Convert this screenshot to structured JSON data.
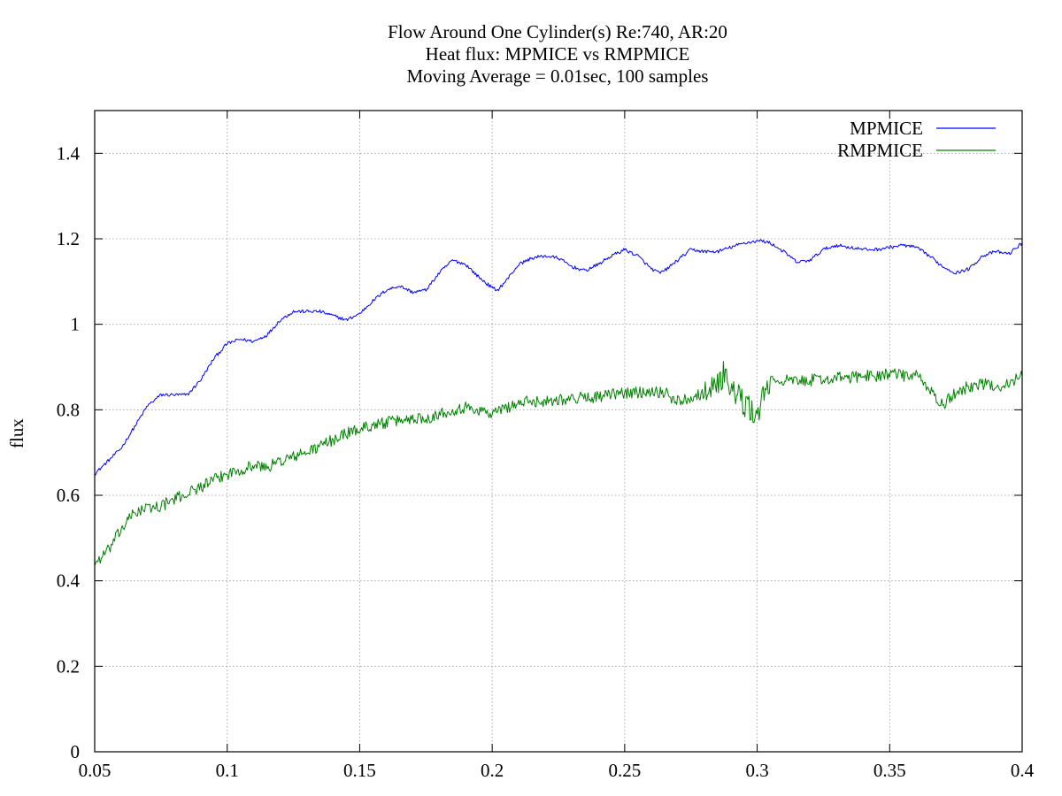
{
  "chart_data": {
    "type": "line",
    "title_lines": [
      "Flow Around One Cylinder(s) Re:740, AR:20",
      "Heat flux: MPMICE vs RMPMICE",
      "Moving Average = 0.01sec, 100 samples"
    ],
    "xlabel": "",
    "ylabel": "flux",
    "xlim": [
      0.05,
      0.4
    ],
    "ylim": [
      0,
      1.5
    ],
    "xticks": [
      0.05,
      0.1,
      0.15,
      0.2,
      0.25,
      0.3,
      0.35,
      0.4
    ],
    "xtick_labels": [
      "0.05",
      "0.1",
      "0.15",
      "0.2",
      "0.25",
      "0.3",
      "0.35",
      "0.4"
    ],
    "yticks": [
      0,
      0.2,
      0.4,
      0.6,
      0.8,
      1,
      1.2,
      1.4
    ],
    "ytick_labels": [
      "0",
      "0.2",
      "0.4",
      "0.6",
      "0.8",
      "1",
      "1.2",
      "1.4"
    ],
    "grid": true,
    "legend_position": "top-right",
    "series": [
      {
        "name": "MPMICE",
        "color": "#0000ff",
        "x": [
          0.05,
          0.055,
          0.06,
          0.065,
          0.07,
          0.075,
          0.08,
          0.085,
          0.09,
          0.095,
          0.1,
          0.105,
          0.11,
          0.115,
          0.12,
          0.125,
          0.13,
          0.135,
          0.14,
          0.145,
          0.15,
          0.155,
          0.16,
          0.165,
          0.17,
          0.175,
          0.18,
          0.185,
          0.19,
          0.195,
          0.2,
          0.202,
          0.205,
          0.21,
          0.215,
          0.22,
          0.225,
          0.23,
          0.235,
          0.24,
          0.245,
          0.25,
          0.255,
          0.26,
          0.263,
          0.265,
          0.27,
          0.275,
          0.28,
          0.285,
          0.29,
          0.295,
          0.3,
          0.302,
          0.305,
          0.31,
          0.315,
          0.32,
          0.325,
          0.33,
          0.335,
          0.34,
          0.345,
          0.35,
          0.355,
          0.36,
          0.365,
          0.37,
          0.375,
          0.38,
          0.385,
          0.39,
          0.395,
          0.4
        ],
        "y": [
          0.65,
          0.68,
          0.71,
          0.76,
          0.81,
          0.835,
          0.835,
          0.835,
          0.87,
          0.92,
          0.955,
          0.965,
          0.96,
          0.975,
          1.01,
          1.03,
          1.03,
          1.03,
          1.02,
          1.01,
          1.025,
          1.055,
          1.08,
          1.09,
          1.075,
          1.08,
          1.12,
          1.15,
          1.14,
          1.11,
          1.085,
          1.08,
          1.1,
          1.14,
          1.155,
          1.16,
          1.155,
          1.135,
          1.125,
          1.14,
          1.16,
          1.175,
          1.16,
          1.13,
          1.12,
          1.125,
          1.15,
          1.175,
          1.17,
          1.17,
          1.18,
          1.19,
          1.195,
          1.195,
          1.19,
          1.17,
          1.145,
          1.15,
          1.175,
          1.185,
          1.18,
          1.175,
          1.175,
          1.18,
          1.185,
          1.18,
          1.16,
          1.135,
          1.12,
          1.13,
          1.16,
          1.17,
          1.165,
          1.19
        ]
      },
      {
        "name": "RMPMICE",
        "color": "#008000",
        "x": [
          0.05,
          0.055,
          0.06,
          0.065,
          0.07,
          0.075,
          0.08,
          0.085,
          0.09,
          0.095,
          0.1,
          0.105,
          0.11,
          0.115,
          0.12,
          0.125,
          0.13,
          0.135,
          0.14,
          0.145,
          0.15,
          0.155,
          0.16,
          0.165,
          0.17,
          0.175,
          0.18,
          0.185,
          0.19,
          0.195,
          0.2,
          0.205,
          0.21,
          0.215,
          0.22,
          0.225,
          0.23,
          0.235,
          0.24,
          0.245,
          0.25,
          0.255,
          0.26,
          0.265,
          0.27,
          0.275,
          0.28,
          0.285,
          0.288,
          0.29,
          0.293,
          0.295,
          0.298,
          0.3,
          0.303,
          0.305,
          0.31,
          0.315,
          0.32,
          0.325,
          0.33,
          0.335,
          0.34,
          0.345,
          0.35,
          0.355,
          0.36,
          0.365,
          0.368,
          0.37,
          0.375,
          0.38,
          0.385,
          0.39,
          0.395,
          0.4
        ],
        "y": [
          0.44,
          0.47,
          0.52,
          0.56,
          0.57,
          0.575,
          0.59,
          0.605,
          0.62,
          0.635,
          0.65,
          0.66,
          0.67,
          0.665,
          0.68,
          0.69,
          0.7,
          0.715,
          0.73,
          0.745,
          0.755,
          0.765,
          0.77,
          0.775,
          0.78,
          0.78,
          0.79,
          0.8,
          0.805,
          0.8,
          0.79,
          0.805,
          0.815,
          0.82,
          0.82,
          0.825,
          0.825,
          0.83,
          0.83,
          0.835,
          0.84,
          0.84,
          0.845,
          0.84,
          0.82,
          0.83,
          0.84,
          0.86,
          0.89,
          0.85,
          0.83,
          0.81,
          0.8,
          0.78,
          0.85,
          0.865,
          0.87,
          0.865,
          0.87,
          0.87,
          0.875,
          0.875,
          0.88,
          0.88,
          0.885,
          0.88,
          0.88,
          0.85,
          0.82,
          0.81,
          0.84,
          0.855,
          0.86,
          0.855,
          0.86,
          0.88
        ]
      }
    ]
  }
}
